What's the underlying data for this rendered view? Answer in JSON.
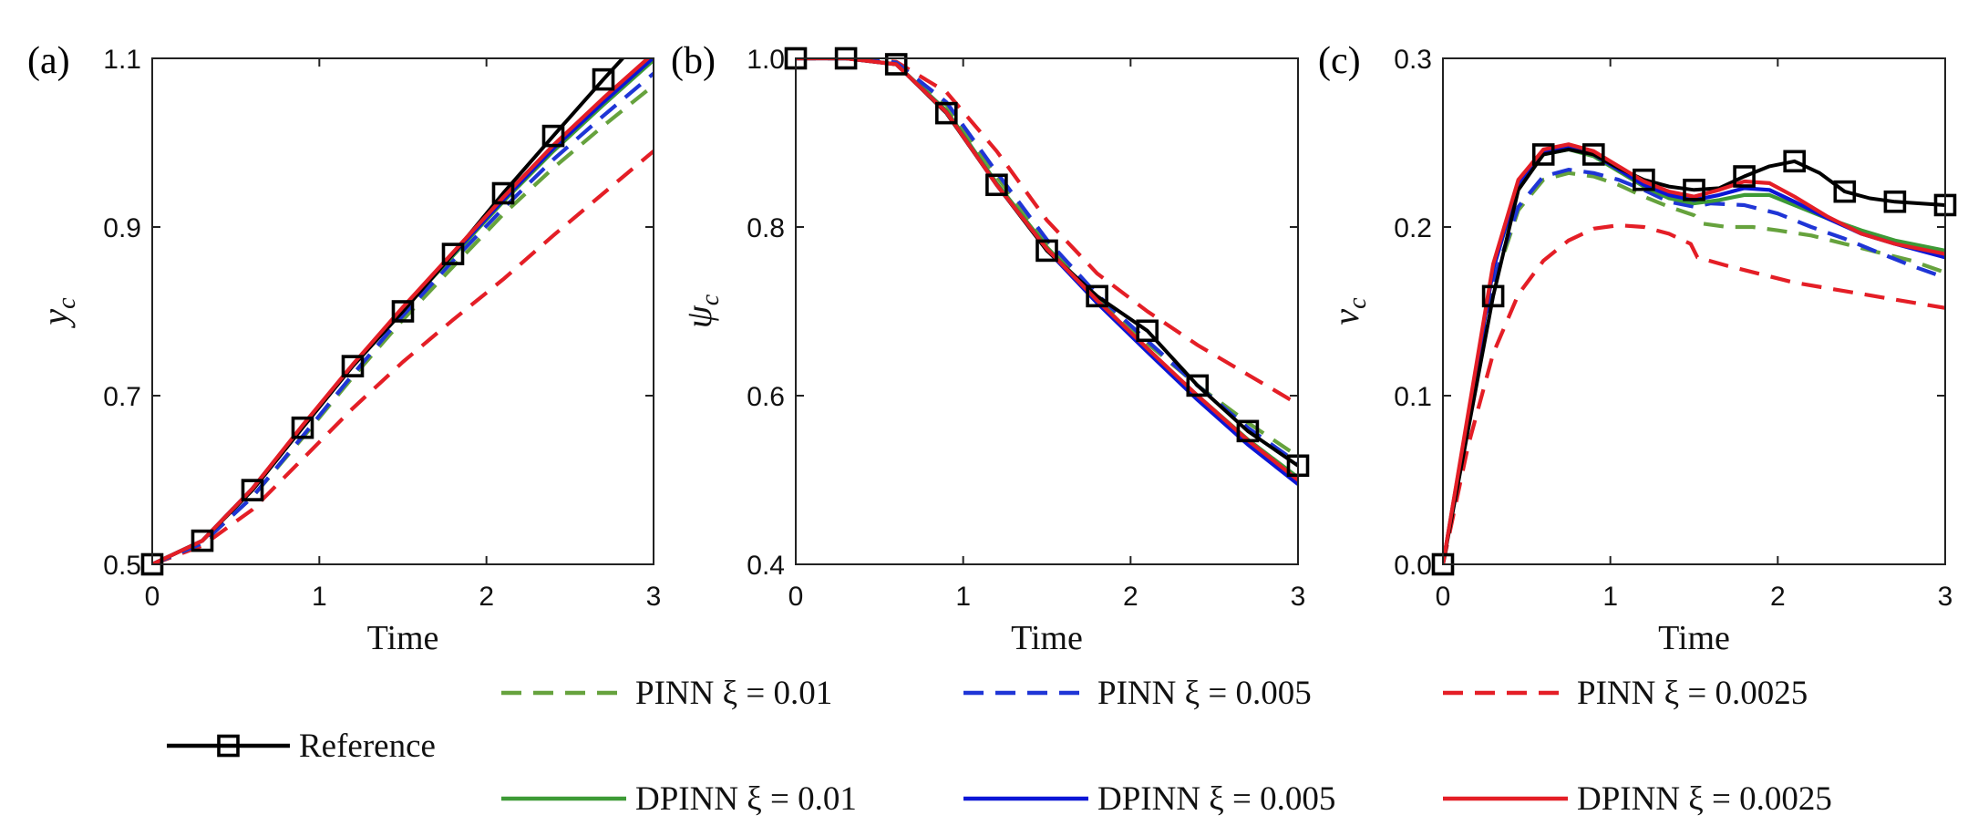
{
  "legend": [
    {
      "key": "pinn_01",
      "label": "PINN ξ = 0.01",
      "color": "#66a23d",
      "style": "dashed"
    },
    {
      "key": "pinn_005",
      "label": "PINN ξ = 0.005",
      "color": "#1f35d6",
      "style": "dashed"
    },
    {
      "key": "pinn_0025",
      "label": "PINN ξ = 0.0025",
      "color": "#e41e26",
      "style": "dashed"
    },
    {
      "key": "ref",
      "label": "Reference",
      "color": "#000000",
      "style": "solid-square"
    },
    {
      "key": "dpinn_01",
      "label": "DPINN ξ = 0.01",
      "color": "#3d9a36",
      "style": "solid"
    },
    {
      "key": "dpinn_005",
      "label": "DPINN ξ = 0.005",
      "color": "#0b16d6",
      "style": "solid"
    },
    {
      "key": "dpinn_0025",
      "label": "DPINN ξ = 0.0025",
      "color": "#e41e26",
      "style": "solid"
    }
  ],
  "chart_data": [
    {
      "type": "line",
      "panel_label": "(a)",
      "xlabel": "Time",
      "ylabel": "y",
      "ylabel_sub": "c",
      "xlim": [
        0,
        3
      ],
      "ylim": [
        0.5,
        1.1
      ],
      "xticks": [
        0,
        1,
        2,
        3
      ],
      "yticks": [
        0.5,
        0.7,
        0.9,
        1.1
      ],
      "ytick_labels": [
        "0.5",
        "0.7",
        "0.9",
        "1.1"
      ],
      "grid": false,
      "series": [
        {
          "key": "ref",
          "x": [
            0,
            0.3,
            0.6,
            0.9,
            1.2,
            1.5,
            1.8,
            2.1,
            2.4,
            2.7,
            3.0
          ],
          "y": [
            0.5,
            0.528,
            0.588,
            0.662,
            0.735,
            0.8,
            0.868,
            0.94,
            1.008,
            1.075,
            1.14
          ]
        },
        {
          "key": "pinn_01",
          "x": [
            0,
            0.3,
            0.6,
            0.9,
            1.2,
            1.5,
            1.8,
            2.1,
            2.4,
            2.7,
            3.0
          ],
          "y": [
            0.5,
            0.525,
            0.58,
            0.65,
            0.722,
            0.79,
            0.853,
            0.915,
            0.97,
            1.02,
            1.068
          ]
        },
        {
          "key": "pinn_005",
          "x": [
            0,
            0.3,
            0.6,
            0.9,
            1.2,
            1.5,
            1.8,
            2.1,
            2.4,
            2.7,
            3.0
          ],
          "y": [
            0.5,
            0.525,
            0.58,
            0.652,
            0.725,
            0.795,
            0.86,
            0.922,
            0.98,
            1.032,
            1.082
          ]
        },
        {
          "key": "pinn_0025",
          "x": [
            0,
            0.3,
            0.6,
            0.9,
            1.2,
            1.5,
            1.8,
            2.1,
            2.4,
            2.7,
            3.0
          ],
          "y": [
            0.5,
            0.522,
            0.565,
            0.625,
            0.685,
            0.74,
            0.79,
            0.838,
            0.89,
            0.94,
            0.99
          ]
        },
        {
          "key": "dpinn_01",
          "x": [
            0,
            0.3,
            0.6,
            0.9,
            1.2,
            1.5,
            1.8,
            2.1,
            2.4,
            2.7,
            3.0
          ],
          "y": [
            0.5,
            0.528,
            0.59,
            0.664,
            0.736,
            0.802,
            0.866,
            0.93,
            0.99,
            1.045,
            1.098
          ]
        },
        {
          "key": "dpinn_005",
          "x": [
            0,
            0.3,
            0.6,
            0.9,
            1.2,
            1.5,
            1.8,
            2.1,
            2.4,
            2.7,
            3.0
          ],
          "y": [
            0.5,
            0.528,
            0.59,
            0.664,
            0.736,
            0.803,
            0.868,
            0.932,
            0.993,
            1.048,
            1.101
          ]
        },
        {
          "key": "dpinn_0025",
          "x": [
            0,
            0.3,
            0.6,
            0.9,
            1.2,
            1.5,
            1.8,
            2.1,
            2.4,
            2.7,
            3.0
          ],
          "y": [
            0.5,
            0.528,
            0.59,
            0.665,
            0.737,
            0.805,
            0.87,
            0.935,
            0.997,
            1.053,
            1.106
          ]
        }
      ]
    },
    {
      "type": "line",
      "panel_label": "(b)",
      "xlabel": "Time",
      "ylabel": "ψ",
      "ylabel_sub": "c",
      "xlim": [
        0,
        3
      ],
      "ylim": [
        0.4,
        1.0
      ],
      "xticks": [
        0,
        1,
        2,
        3
      ],
      "yticks": [
        0.4,
        0.6,
        0.8,
        1.0
      ],
      "ytick_labels": [
        "0.4",
        "0.6",
        "0.8",
        "1.0"
      ],
      "grid": false,
      "series": [
        {
          "key": "ref",
          "x": [
            0,
            0.3,
            0.6,
            0.9,
            1.2,
            1.5,
            1.8,
            2.1,
            2.4,
            2.7,
            3.0
          ],
          "y": [
            1.0,
            1.0,
            0.993,
            0.935,
            0.85,
            0.772,
            0.718,
            0.677,
            0.612,
            0.558,
            0.517
          ]
        },
        {
          "key": "pinn_01",
          "x": [
            0,
            0.3,
            0.6,
            0.9,
            1.2,
            1.5,
            1.8,
            2.1,
            2.4,
            2.7,
            3.0
          ],
          "y": [
            1.0,
            1.0,
            0.995,
            0.945,
            0.86,
            0.782,
            0.716,
            0.662,
            0.612,
            0.568,
            0.528
          ]
        },
        {
          "key": "pinn_005",
          "x": [
            0,
            0.3,
            0.6,
            0.9,
            1.2,
            1.5,
            1.8,
            2.1,
            2.4,
            2.7,
            3.0
          ],
          "y": [
            1.0,
            1.0,
            0.995,
            0.948,
            0.865,
            0.785,
            0.72,
            0.665,
            0.612,
            0.562,
            0.52
          ]
        },
        {
          "key": "pinn_0025",
          "x": [
            0,
            0.3,
            0.6,
            0.9,
            1.2,
            1.5,
            1.8,
            2.1,
            2.4,
            2.7,
            3.0
          ],
          "y": [
            1.0,
            1.0,
            0.996,
            0.96,
            0.89,
            0.808,
            0.745,
            0.7,
            0.66,
            0.625,
            0.59
          ]
        },
        {
          "key": "dpinn_01",
          "x": [
            0,
            0.3,
            0.6,
            0.9,
            1.2,
            1.5,
            1.8,
            2.1,
            2.4,
            2.7,
            3.0
          ],
          "y": [
            1.0,
            1.0,
            0.993,
            0.938,
            0.852,
            0.776,
            0.714,
            0.655,
            0.6,
            0.548,
            0.503
          ]
        },
        {
          "key": "dpinn_005",
          "x": [
            0,
            0.3,
            0.6,
            0.9,
            1.2,
            1.5,
            1.8,
            2.1,
            2.4,
            2.7,
            3.0
          ],
          "y": [
            1.0,
            1.0,
            0.993,
            0.936,
            0.85,
            0.773,
            0.71,
            0.652,
            0.595,
            0.542,
            0.495
          ]
        },
        {
          "key": "dpinn_0025",
          "x": [
            0,
            0.3,
            0.6,
            0.9,
            1.2,
            1.5,
            1.8,
            2.1,
            2.4,
            2.7,
            3.0
          ],
          "y": [
            1.0,
            1.0,
            0.993,
            0.936,
            0.85,
            0.774,
            0.713,
            0.656,
            0.6,
            0.547,
            0.5
          ]
        }
      ]
    },
    {
      "type": "line",
      "panel_label": "(c)",
      "xlabel": "Time",
      "ylabel": "v",
      "ylabel_sub": "c",
      "xlim": [
        0,
        3
      ],
      "ylim": [
        0.0,
        0.3
      ],
      "xticks": [
        0,
        1,
        2,
        3
      ],
      "yticks": [
        0.0,
        0.1,
        0.2,
        0.3
      ],
      "ytick_labels": [
        "0.0",
        "0.1",
        "0.2",
        "0.3"
      ],
      "grid": false,
      "series": [
        {
          "key": "ref",
          "x": [
            0,
            0.3,
            0.45,
            0.6,
            0.75,
            0.9,
            1.05,
            1.2,
            1.35,
            1.5,
            1.65,
            1.8,
            1.95,
            2.1,
            2.25,
            2.4,
            2.55,
            2.7,
            2.85,
            3.0
          ],
          "y": [
            0,
            0.159,
            0.222,
            0.243,
            0.246,
            0.243,
            0.235,
            0.228,
            0.224,
            0.222,
            0.223,
            0.23,
            0.236,
            0.239,
            0.232,
            0.221,
            0.217,
            0.215,
            0.214,
            0.213
          ]
        },
        {
          "key": "pinn_01",
          "x": [
            0,
            0.3,
            0.45,
            0.6,
            0.75,
            0.9,
            1.05,
            1.2,
            1.35,
            1.5,
            1.55,
            1.7,
            1.85,
            2.0,
            2.2,
            2.4,
            2.6,
            2.8,
            3.0
          ],
          "y": [
            0,
            0.165,
            0.21,
            0.228,
            0.232,
            0.23,
            0.225,
            0.218,
            0.212,
            0.207,
            0.202,
            0.2,
            0.2,
            0.198,
            0.195,
            0.19,
            0.185,
            0.18,
            0.173
          ]
        },
        {
          "key": "pinn_005",
          "x": [
            0,
            0.3,
            0.45,
            0.6,
            0.75,
            0.9,
            1.05,
            1.2,
            1.35,
            1.5,
            1.6,
            1.8,
            2.0,
            2.2,
            2.4,
            2.6,
            2.8,
            3.0
          ],
          "y": [
            0,
            0.168,
            0.212,
            0.23,
            0.234,
            0.232,
            0.228,
            0.222,
            0.215,
            0.212,
            0.214,
            0.213,
            0.208,
            0.2,
            0.193,
            0.185,
            0.177,
            0.17
          ]
        },
        {
          "key": "pinn_0025",
          "x": [
            0,
            0.15,
            0.3,
            0.45,
            0.6,
            0.75,
            0.9,
            1.05,
            1.2,
            1.35,
            1.48,
            1.52,
            1.7,
            1.9,
            2.1,
            2.4,
            2.7,
            3.0
          ],
          "y": [
            0,
            0.07,
            0.125,
            0.16,
            0.18,
            0.192,
            0.199,
            0.201,
            0.2,
            0.196,
            0.19,
            0.182,
            0.177,
            0.172,
            0.167,
            0.162,
            0.157,
            0.152
          ]
        },
        {
          "key": "dpinn_01",
          "x": [
            0,
            0.3,
            0.45,
            0.6,
            0.75,
            0.9,
            1.05,
            1.2,
            1.35,
            1.5,
            1.65,
            1.8,
            1.95,
            2.1,
            2.3,
            2.5,
            2.7,
            3.0
          ],
          "y": [
            0,
            0.175,
            0.225,
            0.243,
            0.246,
            0.242,
            0.233,
            0.224,
            0.217,
            0.214,
            0.216,
            0.219,
            0.219,
            0.213,
            0.205,
            0.198,
            0.192,
            0.186
          ]
        },
        {
          "key": "dpinn_005",
          "x": [
            0,
            0.3,
            0.45,
            0.6,
            0.75,
            0.9,
            1.05,
            1.2,
            1.35,
            1.5,
            1.65,
            1.8,
            1.95,
            2.1,
            2.3,
            2.5,
            2.7,
            3.0
          ],
          "y": [
            0,
            0.175,
            0.226,
            0.244,
            0.247,
            0.243,
            0.234,
            0.225,
            0.219,
            0.216,
            0.219,
            0.223,
            0.222,
            0.215,
            0.205,
            0.196,
            0.19,
            0.182
          ]
        },
        {
          "key": "dpinn_0025",
          "x": [
            0,
            0.3,
            0.45,
            0.6,
            0.75,
            0.9,
            1.05,
            1.2,
            1.35,
            1.5,
            1.65,
            1.8,
            1.95,
            2.1,
            2.3,
            2.5,
            2.7,
            3.0
          ],
          "y": [
            0,
            0.178,
            0.228,
            0.246,
            0.249,
            0.245,
            0.236,
            0.227,
            0.221,
            0.218,
            0.222,
            0.227,
            0.226,
            0.218,
            0.206,
            0.196,
            0.19,
            0.184
          ]
        }
      ]
    }
  ]
}
